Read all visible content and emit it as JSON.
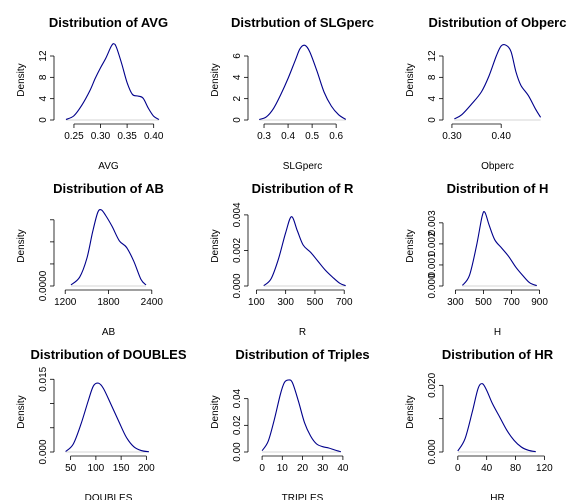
{
  "chart_data": [
    {
      "type": "line",
      "title": "Distribution of AVG",
      "xlabel": "AVG",
      "ylabel": "Density",
      "xlim": [
        0.22,
        0.41
      ],
      "ylim": [
        0,
        15
      ],
      "xticks": [
        0.25,
        0.3,
        0.35,
        0.4
      ],
      "xtick_labels": [
        "0.25",
        "0.30",
        "0.35",
        "0.40"
      ],
      "yticks": [
        0,
        4,
        8,
        12
      ],
      "ytick_labels": [
        "0",
        "4",
        "8",
        "12"
      ],
      "x": [
        0.235,
        0.25,
        0.265,
        0.28,
        0.29,
        0.3,
        0.31,
        0.32,
        0.325,
        0.33,
        0.34,
        0.35,
        0.36,
        0.37,
        0.38,
        0.39,
        0.4,
        0.41
      ],
      "y": [
        0.1,
        0.8,
        2.8,
        5.5,
        7.8,
        9.8,
        11.6,
        13.8,
        14.3,
        13.6,
        10.5,
        7.0,
        4.8,
        4.5,
        4.1,
        2.2,
        0.7,
        0.1
      ]
    },
    {
      "type": "line",
      "title": "Distrbution of SLGperc",
      "xlabel": "SLGperc",
      "ylabel": "Density",
      "xlim": [
        0.25,
        0.67
      ],
      "ylim": [
        0,
        7.5
      ],
      "xticks": [
        0.3,
        0.4,
        0.5,
        0.6
      ],
      "xtick_labels": [
        "0.3",
        "0.4",
        "0.5",
        "0.6"
      ],
      "yticks": [
        0,
        2,
        4,
        6
      ],
      "ytick_labels": [
        "0",
        "2",
        "4",
        "6"
      ],
      "x": [
        0.28,
        0.31,
        0.34,
        0.37,
        0.4,
        0.43,
        0.45,
        0.47,
        0.49,
        0.52,
        0.55,
        0.58,
        0.61,
        0.64
      ],
      "y": [
        0.05,
        0.3,
        1.1,
        2.4,
        3.9,
        5.6,
        6.7,
        7.0,
        6.4,
        4.6,
        2.6,
        1.3,
        0.5,
        0.05
      ]
    },
    {
      "type": "line",
      "title": "Distribution of Obperc",
      "xlabel": "Obperc",
      "ylabel": "Density",
      "xlim": [
        0.29,
        0.495
      ],
      "ylim": [
        0,
        15
      ],
      "xticks": [
        0.3,
        0.4
      ],
      "xtick_labels": [
        "0.30",
        "0.40"
      ],
      "yticks": [
        0,
        4,
        8,
        12
      ],
      "ytick_labels": [
        "0",
        "4",
        "8",
        "12"
      ],
      "x": [
        0.305,
        0.32,
        0.34,
        0.36,
        0.375,
        0.39,
        0.4,
        0.41,
        0.42,
        0.43,
        0.44,
        0.455,
        0.47,
        0.48
      ],
      "y": [
        0.2,
        1.0,
        3.0,
        5.3,
        8.2,
        12.0,
        13.9,
        14.0,
        12.8,
        9.0,
        6.5,
        4.6,
        2.0,
        0.5
      ]
    },
    {
      "type": "line",
      "title": "Distribution of AB",
      "xlabel": "AB",
      "ylabel": "Density",
      "xlim": [
        1100,
        2500
      ],
      "ylim": [
        0,
        0.00145
      ],
      "xticks": [
        1200,
        1800,
        2400
      ],
      "xtick_labels": [
        "1200",
        "1800",
        "2400"
      ],
      "yticks": [
        0,
        0.0004,
        0.0008,
        0.0012
      ],
      "ytick_labels": [
        "0.0000",
        "",
        "",
        ""
      ],
      "x": [
        1280,
        1400,
        1500,
        1580,
        1650,
        1700,
        1760,
        1850,
        1950,
        2050,
        2150,
        2250,
        2320
      ],
      "y": [
        2e-05,
        0.00016,
        0.0005,
        0.00098,
        0.00133,
        0.00138,
        0.00128,
        0.00108,
        0.00082,
        0.0007,
        0.00045,
        0.00012,
        2e-05
      ]
    },
    {
      "type": "line",
      "title": "Distribution of R",
      "xlabel": "R",
      "ylabel": "Density",
      "xlim": [
        70,
        760
      ],
      "ylim": [
        0,
        0.0045
      ],
      "xticks": [
        100,
        300,
        500,
        700
      ],
      "xtick_labels": [
        "100",
        "300",
        "500",
        "700"
      ],
      "yticks": [
        0,
        0.002,
        0.004
      ],
      "ytick_labels": [
        "0.000",
        "0.002",
        "0.004"
      ],
      "x": [
        150,
        200,
        250,
        300,
        340,
        380,
        420,
        470,
        520,
        570,
        620,
        670,
        710
      ],
      "y": [
        2e-05,
        0.0004,
        0.0015,
        0.003,
        0.0039,
        0.0031,
        0.0023,
        0.0019,
        0.0014,
        0.0009,
        0.0005,
        0.00015,
        2e-05
      ]
    },
    {
      "type": "line",
      "title": "Distribution of H",
      "xlabel": "H",
      "ylabel": "Density",
      "xlim": [
        240,
        960
      ],
      "ylim": [
        0,
        0.0038
      ],
      "xticks": [
        300,
        500,
        700,
        900
      ],
      "xtick_labels": [
        "300",
        "500",
        "700",
        "900"
      ],
      "yticks": [
        0,
        0.001,
        0.002,
        0.003
      ],
      "ytick_labels": [
        "0.000",
        "0.001",
        "0.002",
        "0.003"
      ],
      "x": [
        350,
        400,
        450,
        490,
        510,
        540,
        580,
        630,
        680,
        730,
        780,
        830,
        880
      ],
      "y": [
        3e-05,
        0.0005,
        0.0019,
        0.0033,
        0.0035,
        0.0029,
        0.0022,
        0.0018,
        0.0014,
        0.0009,
        0.0005,
        0.00015,
        2e-05
      ]
    },
    {
      "type": "line",
      "title": "Distribution of DOUBLES",
      "xlabel": "DOUBLES",
      "ylabel": "Density",
      "xlim": [
        25,
        225
      ],
      "ylim": [
        0,
        0.0165
      ],
      "xticks": [
        50,
        100,
        150,
        200
      ],
      "xtick_labels": [
        "50",
        "100",
        "150",
        "200"
      ],
      "yticks": [
        0,
        0.005,
        0.01,
        0.015
      ],
      "ytick_labels": [
        "0.000",
        "",
        "",
        "0.015"
      ],
      "x": [
        40,
        55,
        70,
        85,
        95,
        105,
        115,
        130,
        145,
        160,
        175,
        190,
        205
      ],
      "y": [
        0.0001,
        0.0016,
        0.0056,
        0.0106,
        0.0136,
        0.0142,
        0.0131,
        0.0098,
        0.0064,
        0.0031,
        0.0011,
        0.0003,
        5e-05
      ]
    },
    {
      "type": "line",
      "title": "Distribution of Triples",
      "xlabel": "TRIPLES",
      "ylabel": "Density",
      "xlim": [
        -5,
        45
      ],
      "ylim": [
        0,
        0.06
      ],
      "xticks": [
        0,
        10,
        20,
        30,
        40
      ],
      "xtick_labels": [
        "0",
        "10",
        "20",
        "30",
        "40"
      ],
      "yticks": [
        0,
        0.02,
        0.04
      ],
      "ytick_labels": [
        "0.00",
        "0.02",
        "0.04"
      ],
      "x": [
        0,
        3,
        6,
        9,
        11,
        13,
        15,
        18,
        21,
        24,
        27,
        30,
        33,
        36,
        39
      ],
      "y": [
        0.001,
        0.008,
        0.024,
        0.043,
        0.052,
        0.054,
        0.052,
        0.038,
        0.022,
        0.012,
        0.006,
        0.004,
        0.003,
        0.0015,
        0.0002
      ]
    },
    {
      "type": "line",
      "title": "Distribution of HR",
      "xlabel": "HR",
      "ylabel": "Density",
      "xlim": [
        -15,
        125
      ],
      "ylim": [
        0,
        0.024
      ],
      "xticks": [
        0,
        40,
        80,
        120
      ],
      "xtick_labels": [
        "0",
        "40",
        "80",
        "120"
      ],
      "yticks": [
        0,
        0.01,
        0.02
      ],
      "ytick_labels": [
        "0.000",
        "",
        "0.020"
      ],
      "x": [
        0,
        10,
        20,
        28,
        34,
        40,
        48,
        58,
        68,
        78,
        88,
        98,
        108
      ],
      "y": [
        0.0003,
        0.004,
        0.012,
        0.019,
        0.0205,
        0.0185,
        0.0145,
        0.0105,
        0.0065,
        0.0035,
        0.0015,
        0.0005,
        0.0001
      ]
    }
  ]
}
